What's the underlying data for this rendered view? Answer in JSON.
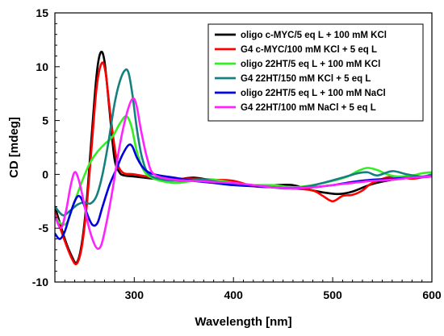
{
  "chart_data": {
    "type": "line",
    "xlabel": "Wavelength [nm]",
    "ylabel": "CD [mdeg]",
    "xlim": [
      220,
      600
    ],
    "ylim": [
      -10,
      15
    ],
    "xticks": [
      300,
      400,
      500,
      600
    ],
    "yticks": [
      -10,
      -5,
      0,
      5,
      10,
      15
    ],
    "grid": false,
    "legend_position": "top-right",
    "series": [
      {
        "name": "oligo c-MYC/5 eq L + 100 mM KCl",
        "color": "#000000",
        "points": [
          [
            220,
            -3.0
          ],
          [
            230,
            -6.0
          ],
          [
            237,
            -7.6
          ],
          [
            242,
            -8.2
          ],
          [
            247,
            -6.5
          ],
          [
            252,
            -2.5
          ],
          [
            257,
            3.5
          ],
          [
            262,
            9.2
          ],
          [
            266,
            11.3
          ],
          [
            270,
            10.5
          ],
          [
            275,
            6.0
          ],
          [
            280,
            1.5
          ],
          [
            285,
            0.2
          ],
          [
            290,
            -0.1
          ],
          [
            300,
            -0.2
          ],
          [
            320,
            -0.4
          ],
          [
            340,
            -0.5
          ],
          [
            360,
            -0.3
          ],
          [
            380,
            -0.6
          ],
          [
            400,
            -0.8
          ],
          [
            420,
            -1.0
          ],
          [
            440,
            -1.0
          ],
          [
            460,
            -1.0
          ],
          [
            480,
            -1.5
          ],
          [
            500,
            -1.8
          ],
          [
            510,
            -1.8
          ],
          [
            520,
            -1.6
          ],
          [
            540,
            -0.9
          ],
          [
            560,
            -0.5
          ],
          [
            580,
            -0.3
          ],
          [
            600,
            -0.2
          ]
        ]
      },
      {
        "name": "G4 c-MYC/100 mM KCl + 5 eq L",
        "color": "#ff0000",
        "points": [
          [
            220,
            -3.5
          ],
          [
            230,
            -6.2
          ],
          [
            237,
            -7.8
          ],
          [
            242,
            -8.3
          ],
          [
            247,
            -6.8
          ],
          [
            252,
            -3.0
          ],
          [
            257,
            2.5
          ],
          [
            262,
            8.0
          ],
          [
            267,
            10.3
          ],
          [
            271,
            9.5
          ],
          [
            276,
            5.5
          ],
          [
            282,
            1.5
          ],
          [
            288,
            0.2
          ],
          [
            300,
            0.0
          ],
          [
            320,
            -0.3
          ],
          [
            340,
            -0.4
          ],
          [
            360,
            -0.4
          ],
          [
            380,
            -0.5
          ],
          [
            400,
            -0.6
          ],
          [
            420,
            -1.1
          ],
          [
            440,
            -1.2
          ],
          [
            460,
            -1.3
          ],
          [
            480,
            -1.5
          ],
          [
            490,
            -2.0
          ],
          [
            500,
            -2.5
          ],
          [
            510,
            -2.0
          ],
          [
            520,
            -1.9
          ],
          [
            530,
            -1.5
          ],
          [
            540,
            -0.8
          ],
          [
            560,
            -0.2
          ],
          [
            580,
            -0.4
          ],
          [
            600,
            -0.1
          ]
        ]
      },
      {
        "name": "oligo 22HT/5 eq L + 100 mM KCl",
        "color": "#33ee22",
        "points": [
          [
            220,
            -3.8
          ],
          [
            225,
            -4.5
          ],
          [
            232,
            -4.5
          ],
          [
            240,
            -2.5
          ],
          [
            248,
            -0.5
          ],
          [
            255,
            1.0
          ],
          [
            262,
            2.0
          ],
          [
            270,
            2.8
          ],
          [
            278,
            3.5
          ],
          [
            286,
            4.8
          ],
          [
            292,
            5.4
          ],
          [
            297,
            4.5
          ],
          [
            303,
            2.0
          ],
          [
            310,
            0.3
          ],
          [
            320,
            -0.4
          ],
          [
            340,
            -0.8
          ],
          [
            360,
            -0.6
          ],
          [
            380,
            -0.5
          ],
          [
            400,
            -0.8
          ],
          [
            420,
            -1.0
          ],
          [
            440,
            -1.0
          ],
          [
            460,
            -1.2
          ],
          [
            480,
            -1.0
          ],
          [
            500,
            -0.6
          ],
          [
            515,
            -0.2
          ],
          [
            525,
            0.3
          ],
          [
            535,
            0.6
          ],
          [
            545,
            0.4
          ],
          [
            555,
            0.0
          ],
          [
            565,
            -0.2
          ],
          [
            580,
            -0.1
          ],
          [
            590,
            0.1
          ],
          [
            600,
            0.2
          ]
        ]
      },
      {
        "name": "G4 22HT/150 mM KCl + 5 eq L",
        "color": "#148080",
        "points": [
          [
            220,
            -3.0
          ],
          [
            228,
            -3.8
          ],
          [
            235,
            -3.4
          ],
          [
            243,
            -2.8
          ],
          [
            250,
            -2.6
          ],
          [
            256,
            -2.7
          ],
          [
            262,
            -2.0
          ],
          [
            268,
            0.0
          ],
          [
            274,
            3.0
          ],
          [
            280,
            6.5
          ],
          [
            285,
            8.5
          ],
          [
            290,
            9.6
          ],
          [
            294,
            9.5
          ],
          [
            298,
            7.5
          ],
          [
            303,
            4.0
          ],
          [
            308,
            1.5
          ],
          [
            315,
            0.0
          ],
          [
            330,
            -0.5
          ],
          [
            350,
            -0.6
          ],
          [
            370,
            -0.5
          ],
          [
            390,
            -0.8
          ],
          [
            410,
            -1.0
          ],
          [
            430,
            -1.1
          ],
          [
            450,
            -1.3
          ],
          [
            470,
            -1.2
          ],
          [
            490,
            -0.8
          ],
          [
            510,
            -0.3
          ],
          [
            525,
            0.1
          ],
          [
            535,
            0.2
          ],
          [
            545,
            -0.1
          ],
          [
            560,
            0.3
          ],
          [
            575,
            0.0
          ],
          [
            590,
            -0.2
          ],
          [
            600,
            0.0
          ]
        ]
      },
      {
        "name": "oligo 22HT/5 eq L + 100 mM NaCl",
        "color": "#0000dd",
        "points": [
          [
            220,
            -5.5
          ],
          [
            225,
            -6.0
          ],
          [
            230,
            -5.3
          ],
          [
            235,
            -3.8
          ],
          [
            240,
            -2.5
          ],
          [
            244,
            -2.0
          ],
          [
            248,
            -2.5
          ],
          [
            253,
            -3.8
          ],
          [
            258,
            -4.7
          ],
          [
            263,
            -4.5
          ],
          [
            268,
            -3.0
          ],
          [
            275,
            -1.0
          ],
          [
            282,
            0.5
          ],
          [
            288,
            1.8
          ],
          [
            294,
            2.7
          ],
          [
            298,
            2.6
          ],
          [
            303,
            1.5
          ],
          [
            310,
            0.5
          ],
          [
            320,
            0.0
          ],
          [
            340,
            -0.3
          ],
          [
            360,
            -0.6
          ],
          [
            380,
            -0.8
          ],
          [
            400,
            -1.0
          ],
          [
            420,
            -1.1
          ],
          [
            440,
            -1.2
          ],
          [
            460,
            -1.3
          ],
          [
            480,
            -1.2
          ],
          [
            500,
            -1.0
          ],
          [
            520,
            -0.7
          ],
          [
            540,
            -0.5
          ],
          [
            560,
            -0.4
          ],
          [
            580,
            -0.3
          ],
          [
            600,
            -0.2
          ]
        ]
      },
      {
        "name": "G4 22HT/100 mM NaCl + 5 eq L",
        "color": "#ff22ff",
        "points": [
          [
            220,
            -3.8
          ],
          [
            226,
            -5.0
          ],
          [
            231,
            -3.5
          ],
          [
            236,
            -1.0
          ],
          [
            240,
            0.2
          ],
          [
            244,
            -0.5
          ],
          [
            249,
            -2.5
          ],
          [
            254,
            -4.8
          ],
          [
            259,
            -6.3
          ],
          [
            263,
            -6.9
          ],
          [
            267,
            -6.5
          ],
          [
            272,
            -4.5
          ],
          [
            278,
            -1.5
          ],
          [
            285,
            2.5
          ],
          [
            292,
            5.5
          ],
          [
            298,
            7.0
          ],
          [
            302,
            6.5
          ],
          [
            307,
            4.0
          ],
          [
            313,
            1.5
          ],
          [
            320,
            0.0
          ],
          [
            340,
            -0.5
          ],
          [
            360,
            -0.6
          ],
          [
            380,
            -0.7
          ],
          [
            400,
            -0.8
          ],
          [
            420,
            -1.0
          ],
          [
            440,
            -1.2
          ],
          [
            460,
            -1.3
          ],
          [
            480,
            -1.2
          ],
          [
            500,
            -1.0
          ],
          [
            520,
            -0.8
          ],
          [
            540,
            -0.6
          ],
          [
            560,
            -0.5
          ],
          [
            580,
            -0.3
          ],
          [
            600,
            -0.2
          ]
        ]
      }
    ]
  }
}
